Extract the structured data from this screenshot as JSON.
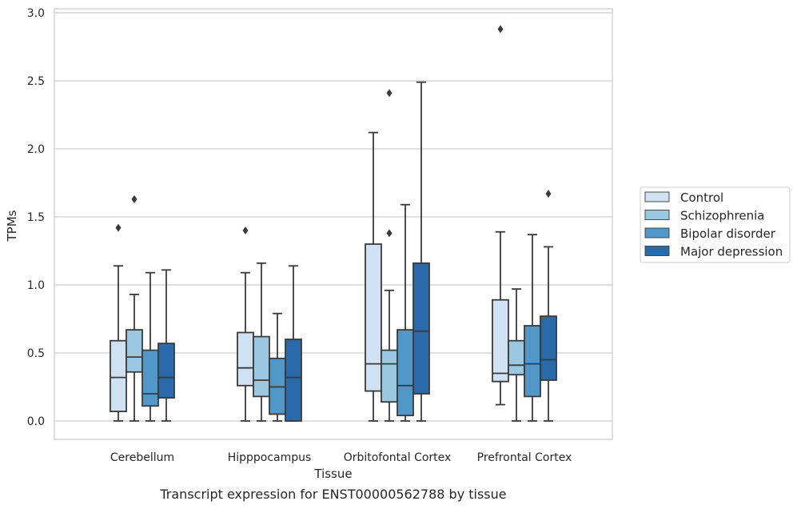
{
  "chart_data": {
    "type": "box",
    "caption": "Transcript expression for ENST00000562788 by tissue",
    "xlabel": "Tissue",
    "ylabel": "TPMs",
    "ylim": [
      0,
      3.0
    ],
    "yticks": [
      "0.0",
      "0.5",
      "1.0",
      "1.5",
      "2.0",
      "2.5",
      "3.0"
    ],
    "ytick_values": [
      0,
      0.5,
      1.0,
      1.5,
      2.0,
      2.5,
      3.0
    ],
    "grid": "horizontal",
    "legend_position": "right",
    "categories": [
      "Cerebellum",
      "Hipppocampus",
      "Orbitofontal Cortex",
      "Prefrontal Cortex"
    ],
    "series": [
      {
        "name": "Control",
        "color": "#d0e1f2",
        "boxes": [
          {
            "whislo": 0.0,
            "q1": 0.07,
            "med": 0.32,
            "q3": 0.59,
            "whishi": 1.14,
            "fliers": [
              1.42
            ]
          },
          {
            "whislo": 0.0,
            "q1": 0.26,
            "med": 0.39,
            "q3": 0.65,
            "whishi": 1.09,
            "fliers": [
              1.4
            ]
          },
          {
            "whislo": 0.0,
            "q1": 0.22,
            "med": 0.42,
            "q3": 1.3,
            "whishi": 2.12,
            "fliers": []
          },
          {
            "whislo": 0.12,
            "q1": 0.29,
            "med": 0.35,
            "q3": 0.89,
            "whishi": 1.39,
            "fliers": [
              2.88
            ]
          }
        ]
      },
      {
        "name": "Schizophrenia",
        "color": "#9ac8e0",
        "boxes": [
          {
            "whislo": 0.0,
            "q1": 0.36,
            "med": 0.47,
            "q3": 0.67,
            "whishi": 0.93,
            "fliers": [
              1.63
            ]
          },
          {
            "whislo": 0.0,
            "q1": 0.18,
            "med": 0.3,
            "q3": 0.62,
            "whishi": 1.16,
            "fliers": []
          },
          {
            "whislo": 0.0,
            "q1": 0.14,
            "med": 0.42,
            "q3": 0.52,
            "whishi": 0.96,
            "fliers": [
              1.38,
              2.41
            ]
          },
          {
            "whislo": 0.0,
            "q1": 0.34,
            "med": 0.41,
            "q3": 0.59,
            "whishi": 0.97,
            "fliers": []
          }
        ]
      },
      {
        "name": "Bipolar disorder",
        "color": "#5198c8",
        "boxes": [
          {
            "whislo": 0.0,
            "q1": 0.11,
            "med": 0.2,
            "q3": 0.52,
            "whishi": 1.09,
            "fliers": []
          },
          {
            "whislo": 0.0,
            "q1": 0.05,
            "med": 0.25,
            "q3": 0.46,
            "whishi": 0.79,
            "fliers": []
          },
          {
            "whislo": 0.0,
            "q1": 0.04,
            "med": 0.26,
            "q3": 0.67,
            "whishi": 1.59,
            "fliers": []
          },
          {
            "whislo": 0.0,
            "q1": 0.18,
            "med": 0.42,
            "q3": 0.7,
            "whishi": 1.37,
            "fliers": []
          }
        ]
      },
      {
        "name": "Major depression",
        "color": "#2a6aa9",
        "boxes": [
          {
            "whislo": 0.0,
            "q1": 0.17,
            "med": 0.32,
            "q3": 0.57,
            "whishi": 1.11,
            "fliers": []
          },
          {
            "whislo": 0.0,
            "q1": 0.0,
            "med": 0.32,
            "q3": 0.6,
            "whishi": 1.14,
            "fliers": []
          },
          {
            "whislo": 0.0,
            "q1": 0.2,
            "med": 0.66,
            "q3": 1.16,
            "whishi": 2.49,
            "fliers": []
          },
          {
            "whislo": 0.0,
            "q1": 0.3,
            "med": 0.45,
            "q3": 0.77,
            "whishi": 1.28,
            "fliers": [
              1.67
            ]
          }
        ]
      }
    ]
  }
}
